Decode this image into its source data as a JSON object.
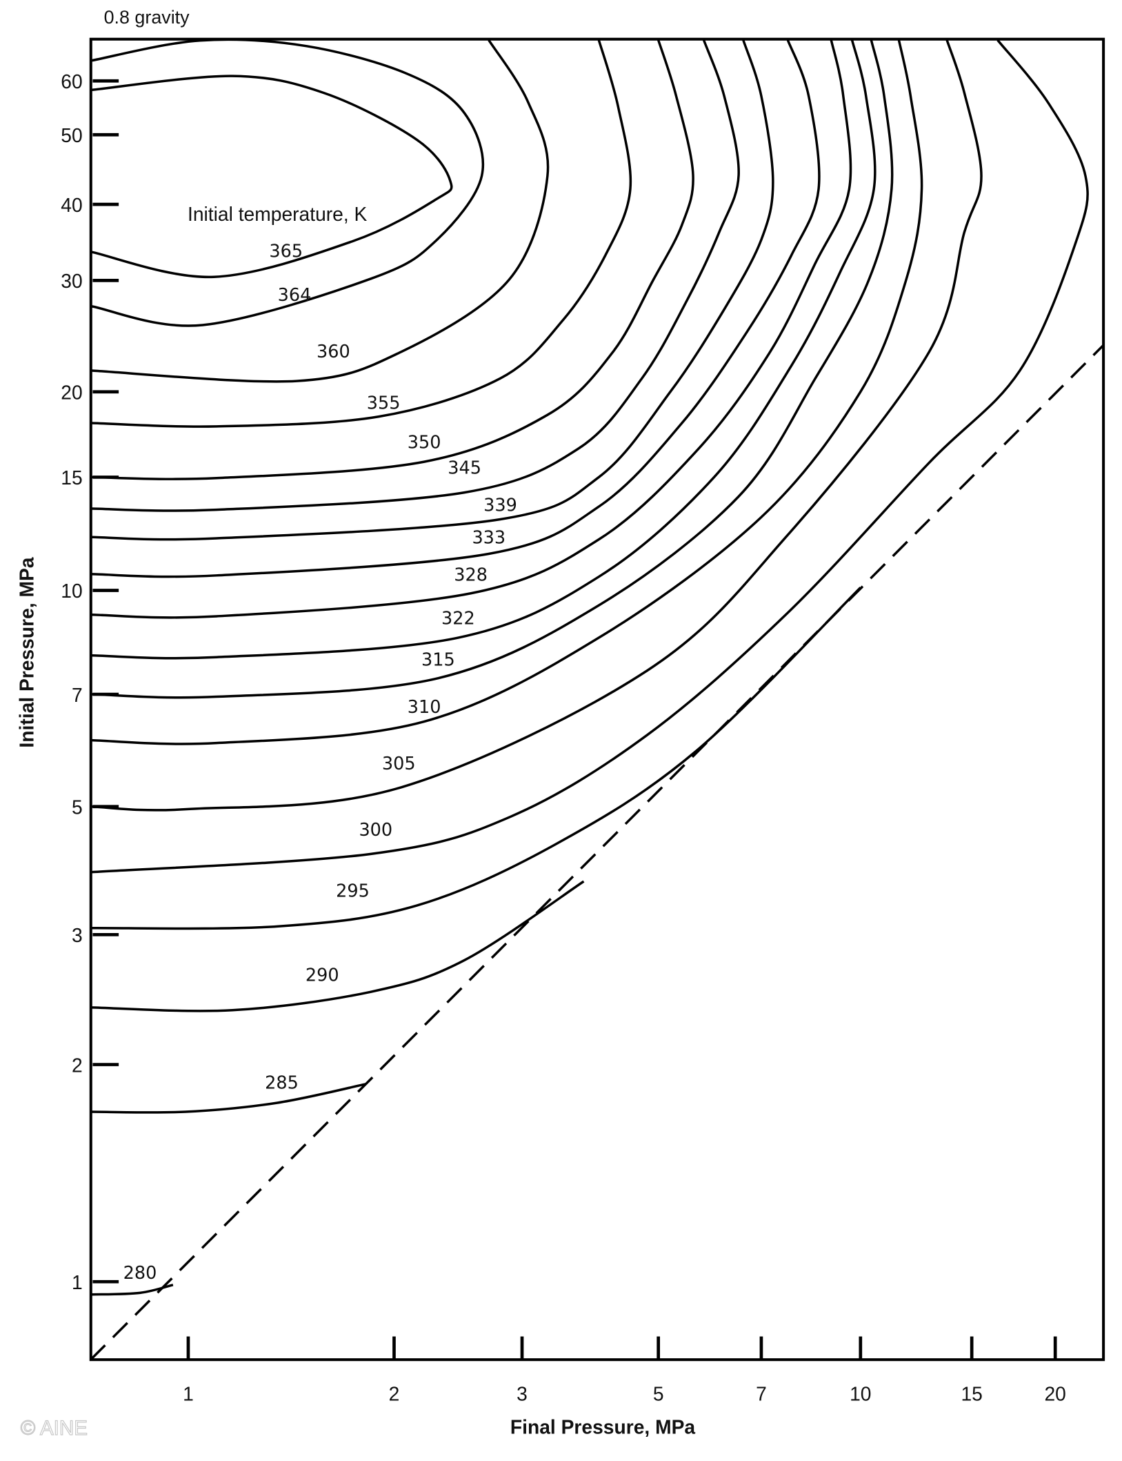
{
  "chart_data": {
    "type": "contour",
    "title": "0.8 gravity",
    "xlabel": "Final Pressure, MPa",
    "ylabel": "Initial Pressure, MPa",
    "annotation": "Initial temperature, K",
    "x_scale": "log",
    "y_scale": "log",
    "xlim": [
      0.72,
      23.7
    ],
    "ylim": [
      0.78,
      69
    ],
    "x_ticks": [
      1,
      2,
      3,
      5,
      7,
      10,
      15,
      20
    ],
    "y_ticks": [
      60,
      50,
      40,
      30,
      20,
      15,
      10,
      7,
      5,
      3,
      2,
      1
    ],
    "x_tick_labels": [
      "1",
      "2",
      "3",
      "5",
      "7",
      "10",
      "15",
      "20"
    ],
    "y_tick_labels": [
      "60",
      "50",
      "40",
      "30",
      "20",
      "15",
      "10",
      "7",
      "5",
      "3",
      "2",
      "1"
    ],
    "grid": false,
    "reference_line": {
      "style": "dashed",
      "points": [
        [
          0.72,
          0.78
        ],
        [
          23.7,
          23.7
        ]
      ]
    },
    "contours": [
      {
        "level": "280",
        "label_at": [
          0.85,
          1.03
        ],
        "points": [
          [
            0.72,
            0.96
          ],
          [
            0.85,
            0.965
          ],
          [
            0.95,
            0.99
          ]
        ]
      },
      {
        "level": "285",
        "label_at": [
          1.37,
          1.89
        ],
        "points": [
          [
            0.72,
            1.72
          ],
          [
            0.99,
            1.72
          ],
          [
            1.35,
            1.77
          ],
          [
            1.82,
            1.88
          ]
        ]
      },
      {
        "level": "290",
        "label_at": [
          1.57,
          2.65
        ],
        "points": [
          [
            0.72,
            2.39
          ],
          [
            1.16,
            2.37
          ],
          [
            1.85,
            2.51
          ],
          [
            2.5,
            2.77
          ],
          [
            3.78,
            3.71
          ]
        ]
      },
      {
        "level": "295",
        "label_at": [
          1.74,
          3.58
        ],
        "points": [
          [
            0.72,
            3.08
          ],
          [
            1.35,
            3.1
          ],
          [
            2.15,
            3.37
          ],
          [
            3.4,
            4.3
          ],
          [
            5.65,
            5.9
          ],
          [
            10,
            10.1
          ]
        ]
      },
      {
        "level": "300",
        "label_at": [
          1.88,
          4.57
        ],
        "points": [
          [
            0.72,
            3.85
          ],
          [
            1.85,
            4.14
          ],
          [
            2.89,
            4.8
          ],
          [
            4.8,
            6.2
          ],
          [
            7.7,
            9.26
          ],
          [
            12.8,
            15.7
          ],
          [
            17.7,
            21.6
          ],
          [
            21.5,
            34.8
          ],
          [
            22.2,
            43.8
          ],
          [
            19.5,
            55.8
          ],
          [
            16.4,
            69
          ]
        ]
      },
      {
        "level": "305",
        "label_at": [
          2.03,
          5.7
        ],
        "points": [
          [
            0.72,
            5.0
          ],
          [
            1.0,
            4.95
          ],
          [
            2.05,
            5.3
          ],
          [
            4.8,
            7.6
          ],
          [
            7.7,
            12.2
          ],
          [
            12.8,
            23
          ],
          [
            14.6,
            36
          ],
          [
            15.5,
            43.8
          ],
          [
            14.6,
            57.6
          ],
          [
            13.7,
            69
          ]
        ]
      },
      {
        "level": "310",
        "label_at": [
          2.2,
          6.75
        ],
        "points": [
          [
            0.72,
            6.1
          ],
          [
            1.1,
            6.05
          ],
          [
            2.2,
            6.45
          ],
          [
            4.0,
            8.5
          ],
          [
            7.0,
            13
          ],
          [
            10,
            20
          ],
          [
            11.8,
            30
          ],
          [
            12.5,
            42
          ],
          [
            12.0,
            57
          ],
          [
            11.5,
            69
          ]
        ]
      },
      {
        "level": "315",
        "label_at": [
          2.3,
          7.9
        ],
        "points": [
          [
            0.72,
            7.0
          ],
          [
            1.1,
            6.95
          ],
          [
            2.3,
            7.4
          ],
          [
            4.0,
            9.5
          ],
          [
            6.5,
            14
          ],
          [
            8.5,
            21
          ],
          [
            10.3,
            30
          ],
          [
            11.2,
            42
          ],
          [
            10.9,
            57
          ],
          [
            10.4,
            69
          ]
        ]
      },
      {
        "level": "322",
        "label_at": [
          2.45,
          9.1
        ],
        "points": [
          [
            0.72,
            8.0
          ],
          [
            1.1,
            7.95
          ],
          [
            2.45,
            8.5
          ],
          [
            4.0,
            10.5
          ],
          [
            6.0,
            15
          ],
          [
            7.8,
            22
          ],
          [
            9.3,
            31
          ],
          [
            10.5,
            42
          ],
          [
            10.2,
            57
          ],
          [
            9.7,
            69
          ]
        ]
      },
      {
        "level": "328",
        "label_at": [
          2.55,
          10.6
        ],
        "points": [
          [
            0.72,
            9.2
          ],
          [
            1.1,
            9.15
          ],
          [
            2.55,
            9.9
          ],
          [
            4.0,
            12
          ],
          [
            5.7,
            16.5
          ],
          [
            7.2,
            23
          ],
          [
            8.5,
            32
          ],
          [
            9.6,
            42
          ],
          [
            9.4,
            57
          ],
          [
            9.0,
            69
          ]
        ]
      },
      {
        "level": "333",
        "label_at": [
          2.7,
          12.1
        ],
        "points": [
          [
            0.72,
            10.6
          ],
          [
            1.1,
            10.55
          ],
          [
            2.7,
            11.4
          ],
          [
            4.0,
            13.5
          ],
          [
            5.4,
            18
          ],
          [
            6.7,
            25
          ],
          [
            7.8,
            33
          ],
          [
            8.6,
            42
          ],
          [
            8.3,
            57
          ],
          [
            7.7,
            69
          ]
        ]
      },
      {
        "level": "339",
        "label_at": [
          2.8,
          13.6
        ],
        "points": [
          [
            0.72,
            12.1
          ],
          [
            1.1,
            12.05
          ],
          [
            2.8,
            12.9
          ],
          [
            4.0,
            15
          ],
          [
            5.2,
            20
          ],
          [
            6.2,
            27
          ],
          [
            7.0,
            35
          ],
          [
            7.3,
            43
          ],
          [
            7.0,
            57
          ],
          [
            6.6,
            69
          ]
        ]
      },
      {
        "level": "345",
        "label_at": [
          2.5,
          15.5
        ],
        "points": [
          [
            0.72,
            13.4
          ],
          [
            1.1,
            13.35
          ],
          [
            2.5,
            14.2
          ],
          [
            3.7,
            16.5
          ],
          [
            4.7,
            21
          ],
          [
            5.5,
            28
          ],
          [
            6.1,
            36
          ],
          [
            6.5,
            44
          ],
          [
            6.2,
            57
          ],
          [
            5.8,
            69
          ]
        ]
      },
      {
        "level": "350",
        "label_at": [
          2.2,
          16.9
        ],
        "points": [
          [
            0.72,
            15
          ],
          [
            1.1,
            14.95
          ],
          [
            2.2,
            15.8
          ],
          [
            3.3,
            18.5
          ],
          [
            4.2,
            23
          ],
          [
            4.9,
            30
          ],
          [
            5.4,
            37
          ],
          [
            5.6,
            44
          ],
          [
            5.3,
            57
          ],
          [
            5.0,
            69
          ]
        ]
      },
      {
        "level": "355",
        "label_at": [
          1.93,
          19.3
        ],
        "points": [
          [
            0.72,
            18.0
          ],
          [
            1.1,
            17.8
          ],
          [
            1.9,
            18.4
          ],
          [
            2.8,
            21
          ],
          [
            3.5,
            26
          ],
          [
            4.1,
            33
          ],
          [
            4.5,
            42
          ],
          [
            4.3,
            55
          ],
          [
            4.0,
            69
          ]
        ]
      },
      {
        "level": "360",
        "label_at": [
          1.63,
          23.2
        ],
        "points": [
          [
            0.72,
            21.6
          ],
          [
            1.44,
            20.8
          ],
          [
            2.04,
            23.1
          ],
          [
            2.88,
            30.1
          ],
          [
            3.3,
            43.8
          ],
          [
            3.07,
            55.8
          ],
          [
            2.7,
            69
          ]
        ]
      },
      {
        "level": "364",
        "label_at": [
          1.43,
          28.5
        ],
        "points": [
          [
            0.72,
            27.3
          ],
          [
            1.05,
            25.5
          ],
          [
            1.85,
            30.2
          ],
          [
            2.28,
            34.8
          ],
          [
            2.64,
            43.8
          ],
          [
            2.5,
            53.8
          ],
          [
            2.09,
            61.4
          ],
          [
            1.49,
            67.5
          ],
          [
            1.04,
            68.8
          ],
          [
            0.72,
            64.3
          ]
        ]
      },
      {
        "level": "365",
        "label_at": [
          1.39,
          33.6
        ],
        "points": [
          [
            0.72,
            33.4
          ],
          [
            1.09,
            30.4
          ],
          [
            1.74,
            34.8
          ],
          [
            2.28,
            40.6
          ],
          [
            2.39,
            43.1
          ],
          [
            2.15,
            49.2
          ],
          [
            1.58,
            57.6
          ],
          [
            1.16,
            61
          ],
          [
            0.72,
            58.2
          ]
        ]
      }
    ],
    "annotation_at": [
      1.35,
      38.5
    ],
    "line_color": "#000000"
  },
  "watermark": "© AINE"
}
